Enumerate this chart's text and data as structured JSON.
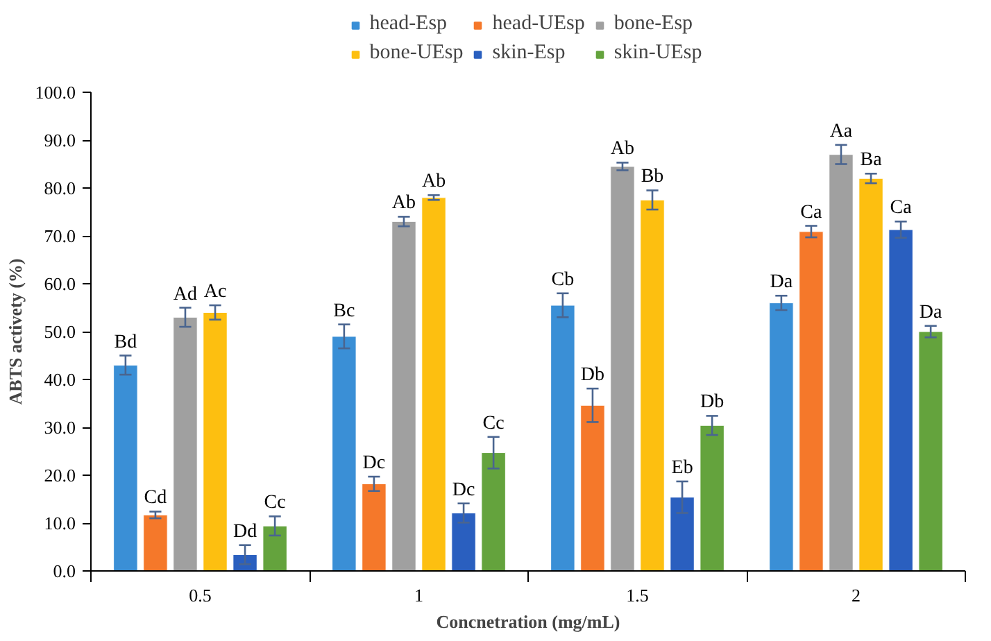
{
  "chart_data": {
    "type": "bar",
    "xlabel": "Concnetration (mg/mL)",
    "ylabel": "ABTS activety (%)",
    "categories": [
      "0.5",
      "1",
      "1.5",
      "2"
    ],
    "ylim": [
      0,
      100
    ],
    "yticks": [
      {
        "value": 0,
        "label": "0.0"
      },
      {
        "value": 10,
        "label": "10.0"
      },
      {
        "value": 20,
        "label": "20.0"
      },
      {
        "value": 30,
        "label": "30.0"
      },
      {
        "value": 40,
        "label": "40.0"
      },
      {
        "value": 50,
        "label": "50.0"
      },
      {
        "value": 60,
        "label": "60.0"
      },
      {
        "value": 70,
        "label": "70.0"
      },
      {
        "value": 80,
        "label": "80.0"
      },
      {
        "value": 90,
        "label": "90.0"
      },
      {
        "value": 100,
        "label": "100.0"
      }
    ],
    "grid": false,
    "legend": "top",
    "series": [
      {
        "name": "head-Esp",
        "color": "#3a8fd6",
        "values": [
          43,
          49,
          55.5,
          56
        ],
        "errors": [
          2,
          2.5,
          2.5,
          1.5
        ],
        "value_labels": [
          "Bd",
          "Bc",
          "Cb",
          "Da"
        ]
      },
      {
        "name": "head-UEsp",
        "color": "#f5782a",
        "values": [
          11.7,
          18.2,
          34.6,
          70.9
        ],
        "errors": [
          0.7,
          1.5,
          3.5,
          1.2
        ],
        "value_labels": [
          "Cd",
          "Dc",
          "Db",
          "Ca"
        ]
      },
      {
        "name": "bone-Esp",
        "color": "#a0a0a0",
        "values": [
          53,
          73,
          84.5,
          87
        ],
        "errors": [
          2,
          1,
          0.8,
          2
        ],
        "value_labels": [
          "Ad",
          "Ab",
          "Ab",
          "Aa"
        ]
      },
      {
        "name": "bone-UEsp",
        "color": "#fdbf10",
        "values": [
          54,
          78,
          77.5,
          82
        ],
        "errors": [
          1.5,
          0.5,
          2,
          1
        ],
        "value_labels": [
          "Ac",
          "Ab",
          "Bb",
          "Ba"
        ]
      },
      {
        "name": "skin-Esp",
        "color": "#2a5fbf",
        "values": [
          3.4,
          12.1,
          15.4,
          71.3
        ],
        "errors": [
          2,
          2,
          3.3,
          1.7
        ],
        "value_labels": [
          "Dd",
          "Dc",
          "Eb",
          "Ca"
        ]
      },
      {
        "name": "skin-UEsp",
        "color": "#64a33d",
        "values": [
          9.4,
          24.7,
          30.4,
          50
        ],
        "errors": [
          2,
          3.3,
          2,
          1.2
        ],
        "value_labels": [
          "Cc",
          "Cc",
          "Db",
          "Da"
        ]
      }
    ]
  }
}
